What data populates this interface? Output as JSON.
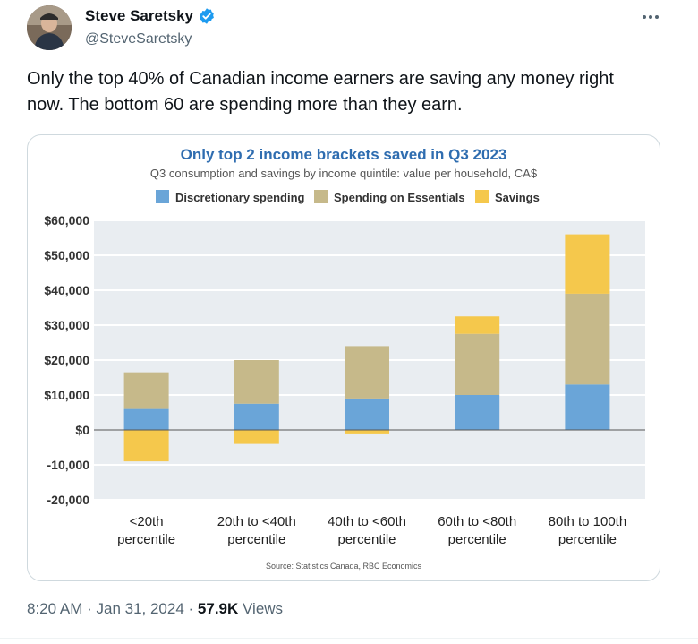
{
  "author": {
    "display_name": "Steve Saretsky",
    "handle": "@SteveSaretsky",
    "verified_icon": "verified-badge-icon"
  },
  "tweet": {
    "text": "Only the top 40% of Canadian income earners are saving any money right now. The bottom 60 are spending more than they earn."
  },
  "meta": {
    "time": "8:20 AM",
    "separator1": " · ",
    "date": "Jan 31, 2024",
    "separator2": " · ",
    "views_count": "57.9K",
    "views_label": "Views"
  },
  "colors": {
    "discretionary": "#6aa5d8",
    "essentials": "#c6b98a",
    "savings": "#f5c84c",
    "title": "#2f6db0",
    "plot_bg": "#e9edf1"
  },
  "chart_data": {
    "type": "bar",
    "stacked": true,
    "title": "Only top 2 income brackets saved in Q3 2023",
    "subtitle": "Q3 consumption and savings by income quintile: value per household, CA$",
    "categories": [
      [
        "<20th",
        "percentile"
      ],
      [
        "20th to <40th",
        "percentile"
      ],
      [
        "40th to <60th",
        "percentile"
      ],
      [
        "60th to <80th",
        "percentile"
      ],
      [
        "80th to 100th",
        "percentile"
      ]
    ],
    "series": [
      {
        "name": "Discretionary spending",
        "values": [
          6000,
          7500,
          9000,
          10000,
          13000
        ]
      },
      {
        "name": "Spending on Essentials",
        "values": [
          10500,
          12500,
          15000,
          17500,
          26000
        ]
      },
      {
        "name": "Savings",
        "values": [
          -9000,
          -4000,
          -1000,
          5000,
          17000
        ]
      }
    ],
    "ylim": [
      -20000,
      60000
    ],
    "yticks": [
      60000,
      50000,
      40000,
      30000,
      20000,
      10000,
      0,
      -10000,
      -20000
    ],
    "ytick_labels": [
      "$60,000",
      "$50,000",
      "$40,000",
      "$30,000",
      "$20,000",
      "$10,000",
      "$0",
      "-10,000",
      "-20,000"
    ],
    "legend_position": "top",
    "grid": true,
    "source": "Source: Statistics Canada, RBC Economics"
  }
}
